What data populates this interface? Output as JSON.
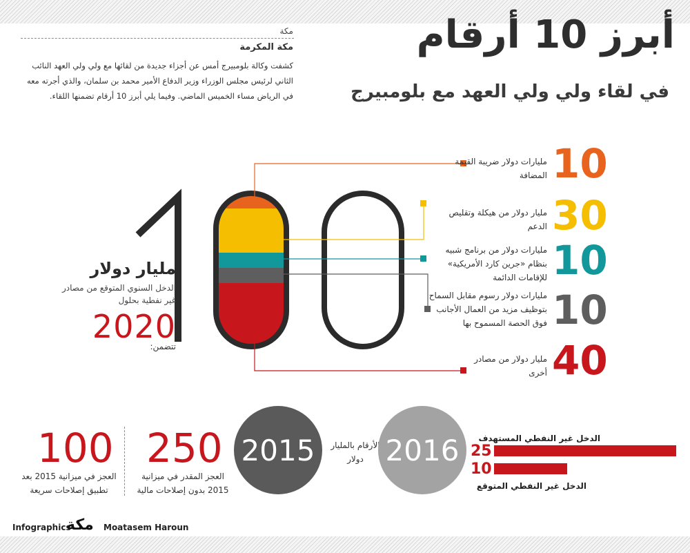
{
  "header": {
    "title": "أبرز 10 أرقام",
    "subtitle": "في لقاء ولي ولي العهد مع بلومبيرج",
    "city_small": "مكة",
    "city_main": "مكة المكرمة",
    "intro": "كشفت وكالة بلومبيرج أمس عن أجزاء جديدة من لقائها مع ولي ولي العهد النائب الثاني لرئيس مجلس الوزراء وزير الدفاع الأمير محمد بن سلمان، والذي أجرته معه في الرياض مساء الخميس الماضي. وفيما يلي أبرز 10 أرقام تضمنها اللقاء."
  },
  "center": {
    "unit": "مليار دولار",
    "description": "الدخل السنوي المتوقع من مصادر غير نفطية بحلول",
    "year": "2020",
    "contains": "تتضمن:"
  },
  "breakdown": [
    {
      "value": "10",
      "text": "مليارات دولار ضريبة القيمة المضافة",
      "color": "#e8641e"
    },
    {
      "value": "30",
      "text": "مليار دولار من هيكلة وتقليص الدعم",
      "color": "#f6be00"
    },
    {
      "value": "10",
      "text": "مليارات دولار من برنامج شبيه بنظام «جرين كارد الأمريكية» للإقامات الدائمة",
      "color": "#12979a"
    },
    {
      "value": "10",
      "text": "مليارات دولار رسوم مقابل السماح بتوظيف مزيد من العمال الأجانب فوق الحصة المسموح بها",
      "color": "#5e5e5e"
    },
    {
      "value": "40",
      "text": "مليار دولار من مصادر أخرى",
      "color": "#c8161d"
    }
  ],
  "bottom": {
    "year_2015": "2015",
    "year_2016": "2016",
    "units_note": "الأرقام بالمليار دولار",
    "stat_250": {
      "value": "250",
      "text": "العجز المقدر في ميزانية 2015 بدون إصلاحات مالية"
    },
    "stat_100": {
      "value": "100",
      "text": "العجز في ميزانية 2015 بعد تطبيق إصلاحات سريعة"
    },
    "bars": [
      {
        "label": "الدخل غير النفطي المستهدف",
        "value": 25
      },
      {
        "label": "الدخل غير النفطي المتوقع",
        "value": 10
      }
    ],
    "bar_max": 25
  },
  "footer": {
    "left": "Infographics",
    "logo": "مكة",
    "right": "Moatasem Haroun"
  },
  "colors": {
    "orange": "#e8641e",
    "yellow": "#f6be00",
    "teal": "#12979a",
    "gray": "#5e5e5e",
    "red": "#c8161d",
    "dark_circle": "#5a5a5a",
    "light_circle": "#a3a3a3"
  }
}
